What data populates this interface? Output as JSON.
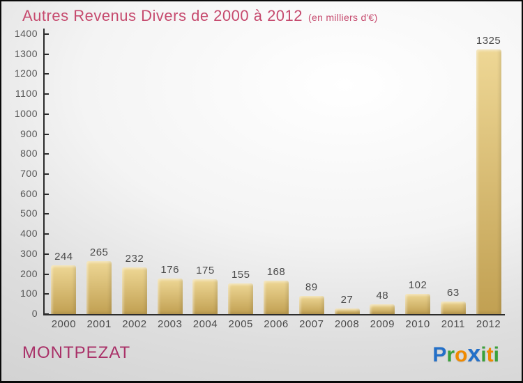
{
  "header": {
    "title": "Autres Revenus Divers de 2000 à 2012",
    "subtitle": "(en milliers d'€)",
    "title_color": "#c64a6e"
  },
  "chart_data": {
    "type": "bar",
    "title": "Autres Revenus Divers de 2000 à 2012",
    "subtitle": "(en milliers d'€)",
    "categories": [
      "2000",
      "2001",
      "2002",
      "2003",
      "2004",
      "2005",
      "2006",
      "2007",
      "2008",
      "2009",
      "2010",
      "2011",
      "2012"
    ],
    "values": [
      244,
      265,
      232,
      176,
      175,
      155,
      168,
      89,
      27,
      48,
      102,
      63,
      1325
    ],
    "xlabel": "",
    "ylabel": "",
    "ylim": [
      0,
      1400
    ],
    "ytick_step": 100,
    "yticks": [
      0,
      100,
      200,
      300,
      400,
      500,
      600,
      700,
      800,
      900,
      1000,
      1100,
      1200,
      1300,
      1400
    ],
    "grid": false,
    "legend": null,
    "value_labels_shown": true,
    "bar_color_top": "#eed795",
    "bar_color_bottom": "#c1a052",
    "axis_color": "#2b2b2b",
    "label_color": "#4a4a4a"
  },
  "footer": {
    "location": "MONTPEZAT",
    "location_color": "#a93168",
    "logo": {
      "name": "proxiti-logo",
      "text": "Proxiti",
      "letters": [
        {
          "ch": "P",
          "color": "#2470c8",
          "big": false
        },
        {
          "ch": "r",
          "color": "#3aa13a",
          "big": false
        },
        {
          "ch": "o",
          "color": "#f08a00",
          "big": false
        },
        {
          "ch": "x",
          "color": "#2470c8",
          "big": true
        },
        {
          "ch": "i",
          "color": "#3aa13a",
          "big": false
        },
        {
          "ch": "t",
          "color": "#f08a00",
          "big": false
        },
        {
          "ch": "i",
          "color": "#3aa13a",
          "big": false
        }
      ]
    }
  }
}
